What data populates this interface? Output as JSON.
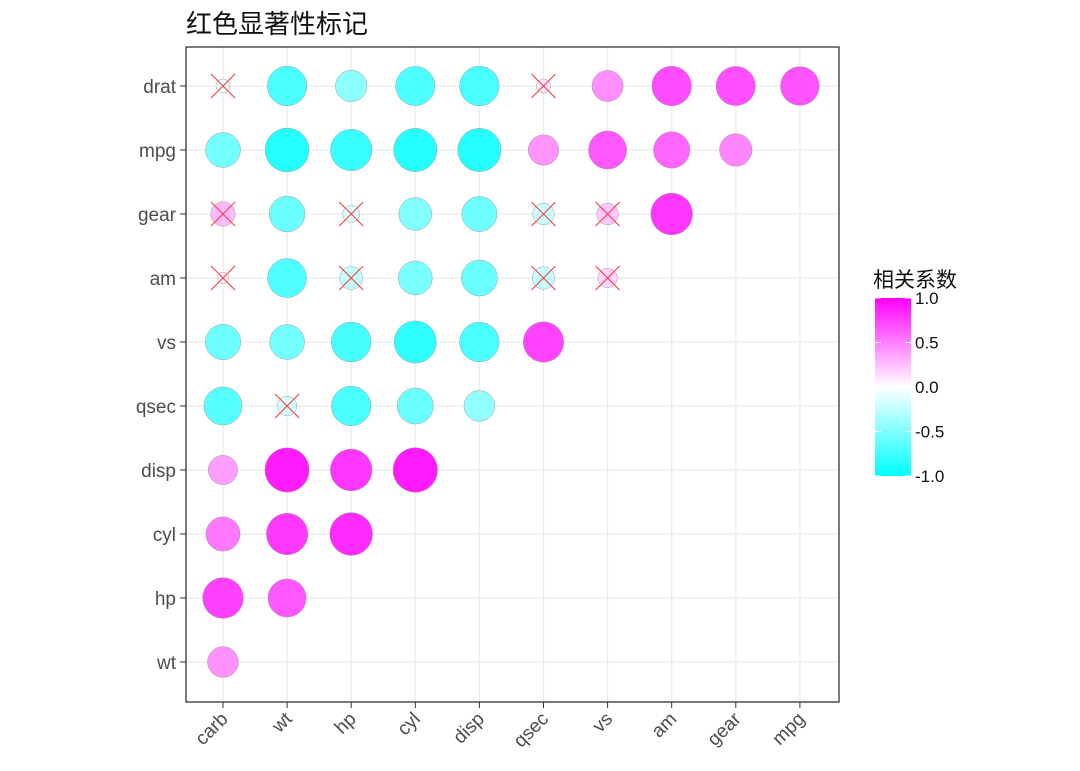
{
  "title": "红色显著性标记",
  "legend": {
    "title": "相关系数",
    "ticks": [
      "1.0",
      "0.5",
      "0.0",
      "-0.5",
      "-1.0"
    ],
    "tick_values": [
      1.0,
      0.5,
      0.0,
      -0.5,
      -1.0
    ],
    "color_high": "#ff00ff",
    "color_mid": "#ffffff",
    "color_low": "#00ffff"
  },
  "colors": {
    "positive": "#ff00ff",
    "negative": "#00ffff",
    "insignificant_mark": "#ff3b3b",
    "grid": "#ebebeb",
    "panel_border": "#333333"
  },
  "chart_data": {
    "type": "heatmap",
    "title": "红色显著性标记",
    "x_categories": [
      "carb",
      "wt",
      "hp",
      "cyl",
      "disp",
      "qsec",
      "vs",
      "am",
      "gear",
      "mpg"
    ],
    "y_categories": [
      "drat",
      "mpg",
      "gear",
      "am",
      "vs",
      "qsec",
      "disp",
      "cyl",
      "hp",
      "wt"
    ],
    "legend_title": "相关系数",
    "value_range": [
      -1,
      1
    ],
    "grid": true,
    "legend_position": "right",
    "cells": [
      {
        "x": "carb",
        "y": "drat",
        "r": -0.09,
        "insignificant": true
      },
      {
        "x": "wt",
        "y": "drat",
        "r": -0.71,
        "insignificant": false
      },
      {
        "x": "hp",
        "y": "drat",
        "r": -0.45,
        "insignificant": false
      },
      {
        "x": "cyl",
        "y": "drat",
        "r": -0.7,
        "insignificant": false
      },
      {
        "x": "disp",
        "y": "drat",
        "r": -0.71,
        "insignificant": false
      },
      {
        "x": "qsec",
        "y": "drat",
        "r": 0.09,
        "insignificant": true
      },
      {
        "x": "vs",
        "y": "drat",
        "r": 0.44,
        "insignificant": false
      },
      {
        "x": "am",
        "y": "drat",
        "r": 0.71,
        "insignificant": false
      },
      {
        "x": "gear",
        "y": "drat",
        "r": 0.7,
        "insignificant": false
      },
      {
        "x": "mpg",
        "y": "drat",
        "r": 0.68,
        "insignificant": false
      },
      {
        "x": "carb",
        "y": "mpg",
        "r": -0.55,
        "insignificant": false
      },
      {
        "x": "wt",
        "y": "mpg",
        "r": -0.87,
        "insignificant": false
      },
      {
        "x": "hp",
        "y": "mpg",
        "r": -0.78,
        "insignificant": false
      },
      {
        "x": "cyl",
        "y": "mpg",
        "r": -0.85,
        "insignificant": false
      },
      {
        "x": "disp",
        "y": "mpg",
        "r": -0.85,
        "insignificant": false
      },
      {
        "x": "qsec",
        "y": "mpg",
        "r": 0.42,
        "insignificant": false
      },
      {
        "x": "vs",
        "y": "mpg",
        "r": 0.66,
        "insignificant": false
      },
      {
        "x": "am",
        "y": "mpg",
        "r": 0.6,
        "insignificant": false
      },
      {
        "x": "gear",
        "y": "mpg",
        "r": 0.48,
        "insignificant": false
      },
      {
        "x": "carb",
        "y": "gear",
        "r": 0.27,
        "insignificant": true
      },
      {
        "x": "wt",
        "y": "gear",
        "r": -0.58,
        "insignificant": false
      },
      {
        "x": "hp",
        "y": "gear",
        "r": -0.13,
        "insignificant": true
      },
      {
        "x": "cyl",
        "y": "gear",
        "r": -0.49,
        "insignificant": false
      },
      {
        "x": "disp",
        "y": "gear",
        "r": -0.56,
        "insignificant": false
      },
      {
        "x": "qsec",
        "y": "gear",
        "r": -0.21,
        "insignificant": true
      },
      {
        "x": "vs",
        "y": "gear",
        "r": 0.21,
        "insignificant": true
      },
      {
        "x": "am",
        "y": "gear",
        "r": 0.79,
        "insignificant": false
      },
      {
        "x": "carb",
        "y": "am",
        "r": 0.06,
        "insignificant": true
      },
      {
        "x": "wt",
        "y": "am",
        "r": -0.69,
        "insignificant": false
      },
      {
        "x": "hp",
        "y": "am",
        "r": -0.24,
        "insignificant": true
      },
      {
        "x": "cyl",
        "y": "am",
        "r": -0.52,
        "insignificant": false
      },
      {
        "x": "disp",
        "y": "am",
        "r": -0.59,
        "insignificant": false
      },
      {
        "x": "qsec",
        "y": "am",
        "r": -0.23,
        "insignificant": true
      },
      {
        "x": "vs",
        "y": "am",
        "r": 0.17,
        "insignificant": true
      },
      {
        "x": "carb",
        "y": "vs",
        "r": -0.57,
        "insignificant": false
      },
      {
        "x": "wt",
        "y": "vs",
        "r": -0.55,
        "insignificant": false
      },
      {
        "x": "hp",
        "y": "vs",
        "r": -0.72,
        "insignificant": false
      },
      {
        "x": "cyl",
        "y": "vs",
        "r": -0.81,
        "insignificant": false
      },
      {
        "x": "disp",
        "y": "vs",
        "r": -0.71,
        "insignificant": false
      },
      {
        "x": "qsec",
        "y": "vs",
        "r": 0.74,
        "insignificant": false
      },
      {
        "x": "carb",
        "y": "qsec",
        "r": -0.66,
        "insignificant": false
      },
      {
        "x": "wt",
        "y": "qsec",
        "r": -0.17,
        "insignificant": true
      },
      {
        "x": "hp",
        "y": "qsec",
        "r": -0.71,
        "insignificant": false
      },
      {
        "x": "cyl",
        "y": "qsec",
        "r": -0.59,
        "insignificant": false
      },
      {
        "x": "disp",
        "y": "qsec",
        "r": -0.43,
        "insignificant": false
      },
      {
        "x": "carb",
        "y": "disp",
        "r": 0.39,
        "insignificant": false
      },
      {
        "x": "wt",
        "y": "disp",
        "r": 0.89,
        "insignificant": false
      },
      {
        "x": "hp",
        "y": "disp",
        "r": 0.79,
        "insignificant": false
      },
      {
        "x": "cyl",
        "y": "disp",
        "r": 0.9,
        "insignificant": false
      },
      {
        "x": "carb",
        "y": "cyl",
        "r": 0.53,
        "insignificant": false
      },
      {
        "x": "wt",
        "y": "cyl",
        "r": 0.78,
        "insignificant": false
      },
      {
        "x": "hp",
        "y": "cyl",
        "r": 0.83,
        "insignificant": false
      },
      {
        "x": "carb",
        "y": "hp",
        "r": 0.75,
        "insignificant": false
      },
      {
        "x": "wt",
        "y": "hp",
        "r": 0.66,
        "insignificant": false
      },
      {
        "x": "carb",
        "y": "wt",
        "r": 0.43,
        "insignificant": false
      }
    ]
  }
}
